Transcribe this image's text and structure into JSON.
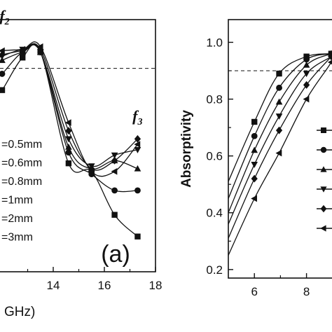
{
  "chart_data": [
    {
      "panel": "a",
      "panel_label": "(a)",
      "type": "line",
      "xlabel_visible": "GHz)",
      "xlim": [
        10,
        18
      ],
      "ylim": [
        0.15,
        1.08
      ],
      "x_ticks": [
        14,
        16,
        18
      ],
      "reference_line": 0.9,
      "peak_labels": [
        {
          "text": "f",
          "sub": "2",
          "x": 11.9,
          "y": 1.075
        },
        {
          "text": "f",
          "sub": "3",
          "x": 17.1,
          "y": 0.705
        }
      ],
      "x": [
        12,
        12.8,
        13.5,
        14.6,
        15.5,
        16.4,
        17.3
      ],
      "series": [
        {
          "name": "=0.5mm",
          "marker": "square",
          "values": [
            0.82,
            0.94,
            0.96,
            0.55,
            0.52,
            0.36,
            0.28
          ]
        },
        {
          "name": "=0.6mm",
          "marker": "circle",
          "values": [
            0.88,
            0.96,
            0.96,
            0.59,
            0.51,
            0.45,
            0.45
          ]
        },
        {
          "name": "=0.8mm",
          "marker": "triangle-up",
          "values": [
            0.93,
            0.96,
            0.96,
            0.61,
            0.53,
            0.56,
            0.53
          ]
        },
        {
          "name": "=1mm",
          "marker": "triangle-down",
          "values": [
            0.945,
            0.97,
            0.96,
            0.64,
            0.54,
            0.58,
            0.6
          ]
        },
        {
          "name": "=2mm",
          "marker": "diamond",
          "values": [
            0.95,
            0.965,
            0.97,
            0.67,
            0.53,
            0.56,
            0.64
          ]
        },
        {
          "name": "=3mm",
          "marker": "triangle-left",
          "values": [
            0.965,
            0.97,
            0.98,
            0.7,
            0.52,
            0.52,
            0.62
          ]
        }
      ]
    },
    {
      "panel": "b",
      "type": "line",
      "ylabel": "Absorptivity",
      "xlim": [
        5,
        9.8
      ],
      "ylim": [
        0.17,
        1.08
      ],
      "x_ticks": [
        6,
        8
      ],
      "y_ticks": [
        0.2,
        0.4,
        0.6,
        0.8,
        1.0
      ],
      "y_tick_labels": [
        "0.2",
        "0.4",
        "0.6",
        "0.8",
        "1.0"
      ],
      "reference_line": 0.9,
      "x": [
        5.0,
        6.0,
        6.95,
        8.0,
        8.95
      ],
      "series": [
        {
          "marker": "square",
          "values": [
            0.51,
            0.72,
            0.89,
            0.95,
            0.96
          ]
        },
        {
          "marker": "circle",
          "values": [
            0.45,
            0.67,
            0.84,
            0.94,
            0.96
          ]
        },
        {
          "marker": "triangle-up",
          "values": [
            0.4,
            0.62,
            0.79,
            0.92,
            0.96
          ]
        },
        {
          "marker": "triangle-down",
          "values": [
            0.36,
            0.57,
            0.74,
            0.89,
            0.95
          ]
        },
        {
          "marker": "diamond",
          "values": [
            0.31,
            0.52,
            0.69,
            0.85,
            0.95
          ]
        },
        {
          "marker": "triangle-left",
          "values": [
            0.25,
            0.45,
            0.61,
            0.8,
            0.93
          ]
        }
      ]
    }
  ]
}
